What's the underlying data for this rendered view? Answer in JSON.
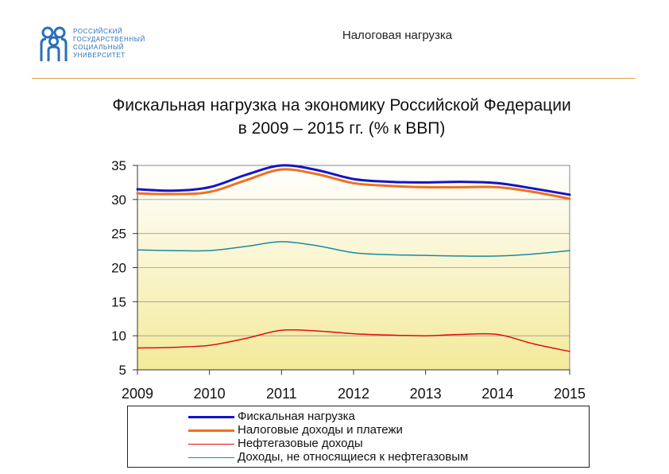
{
  "header": {
    "title": "Налоговая нагрузка",
    "logo_lines": [
      "РОССИЙСКИЙ",
      "ГОСУДАРСТВЕННЫЙ",
      "СОЦИАЛЬНЫЙ",
      "УНИВЕРСИТЕТ"
    ]
  },
  "chart_title_lines": [
    "Фискальная нагрузка на экономику Российской Федерации",
    "в 2009 – 2015 гг. (% к ВВП)"
  ],
  "chart_data": {
    "type": "line",
    "title": "Фискальная нагрузка на экономику Российской Федерации в 2009 – 2015 гг. (% к ВВП)",
    "xlabel": "",
    "ylabel": "",
    "x": [
      2009,
      2009.5,
      2010,
      2010.5,
      2011,
      2011.5,
      2012,
      2012.5,
      2013,
      2013.5,
      2014,
      2014.5,
      2015
    ],
    "x_ticks": [
      "2009",
      "2010",
      "2011",
      "2012",
      "2013",
      "2014",
      "2015"
    ],
    "y_ticks": [
      "5",
      "10",
      "15",
      "20",
      "25",
      "30",
      "35"
    ],
    "ylim": [
      5,
      35
    ],
    "xlim": [
      2009,
      2015
    ],
    "grid": true,
    "legend_position": "bottom",
    "series": [
      {
        "name": "Фискальная нагрузка",
        "color": "#1414c8",
        "width": 3,
        "values": [
          31.5,
          31.3,
          31.8,
          33.6,
          35.0,
          34.3,
          33.0,
          32.6,
          32.5,
          32.6,
          32.4,
          31.6,
          30.7
        ]
      },
      {
        "name": "Налоговые доходы и платежи",
        "color": "#f07020",
        "width": 3,
        "values": [
          30.9,
          30.8,
          31.1,
          32.8,
          34.4,
          33.7,
          32.4,
          32.0,
          31.8,
          31.8,
          31.8,
          31.1,
          30.1
        ]
      },
      {
        "name": "Нефтегазовые доходы",
        "color": "#e01010",
        "width": 1.5,
        "values": [
          8.2,
          8.3,
          8.6,
          9.6,
          10.8,
          10.7,
          10.3,
          10.1,
          10.0,
          10.2,
          10.2,
          8.8,
          7.7
        ]
      },
      {
        "name": "Доходы, не относящиеся к  нефтегазовым",
        "color": "#1a8aa0",
        "width": 1.5,
        "values": [
          22.6,
          22.5,
          22.5,
          23.1,
          23.8,
          23.2,
          22.2,
          21.9,
          21.8,
          21.7,
          21.7,
          22.0,
          22.5
        ]
      }
    ]
  }
}
